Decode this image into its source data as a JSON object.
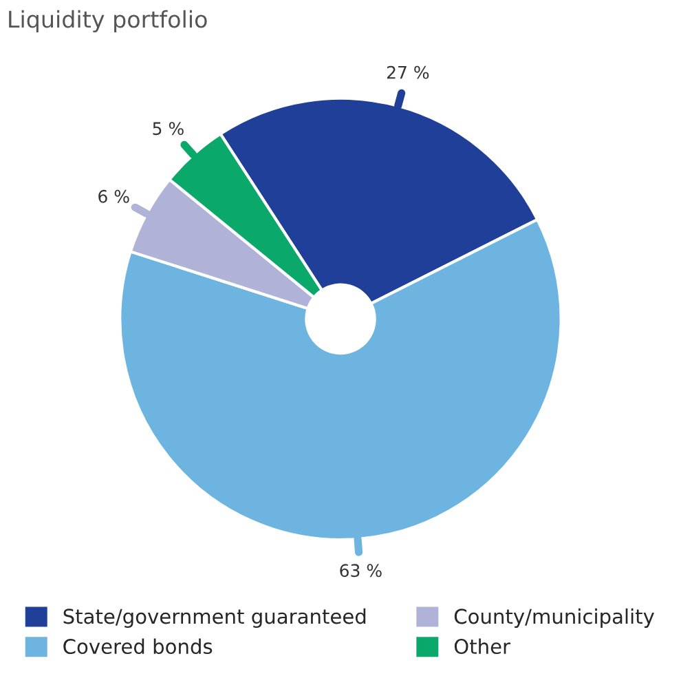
{
  "chart_data": {
    "type": "donut",
    "title": "Liquidity portfolio",
    "categories": [
      "State/government guaranteed",
      "Covered bonds",
      "County/municipality",
      "Other"
    ],
    "values": [
      27,
      63,
      6,
      5
    ],
    "colors": [
      "#1f3f99",
      "#6db5e0",
      "#b0b2d8",
      "#0aa86b"
    ],
    "value_labels": [
      "27 %",
      "63 %",
      "6 %",
      "5 %"
    ],
    "legend": "bottom"
  }
}
